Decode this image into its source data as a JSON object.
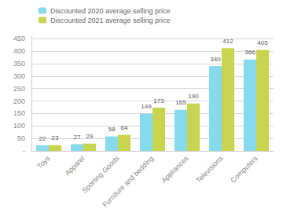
{
  "chart_data": {
    "type": "bar",
    "categories": [
      "Toys",
      "Apparel",
      "Sporting Goods",
      "Furniture and bedding",
      "Appliances",
      "Televisions",
      "Computers"
    ],
    "series": [
      {
        "name": "Discounted 2020 average selling price",
        "color": "#87DAEC",
        "values": [
          22,
          27,
          58,
          149,
          165,
          340,
          366
        ]
      },
      {
        "name": "Discounted 2021 average selling price",
        "color": "#C8D44E",
        "values": [
          23,
          29,
          64,
          173,
          190,
          412,
          405
        ]
      }
    ],
    "ylim": [
      0,
      460
    ],
    "yticks": [
      {
        "value": 0,
        "label": "-"
      },
      50,
      100,
      150,
      200,
      250,
      300,
      350,
      400,
      450
    ],
    "grid": true,
    "legend": "upper left",
    "data_labels": true
  }
}
